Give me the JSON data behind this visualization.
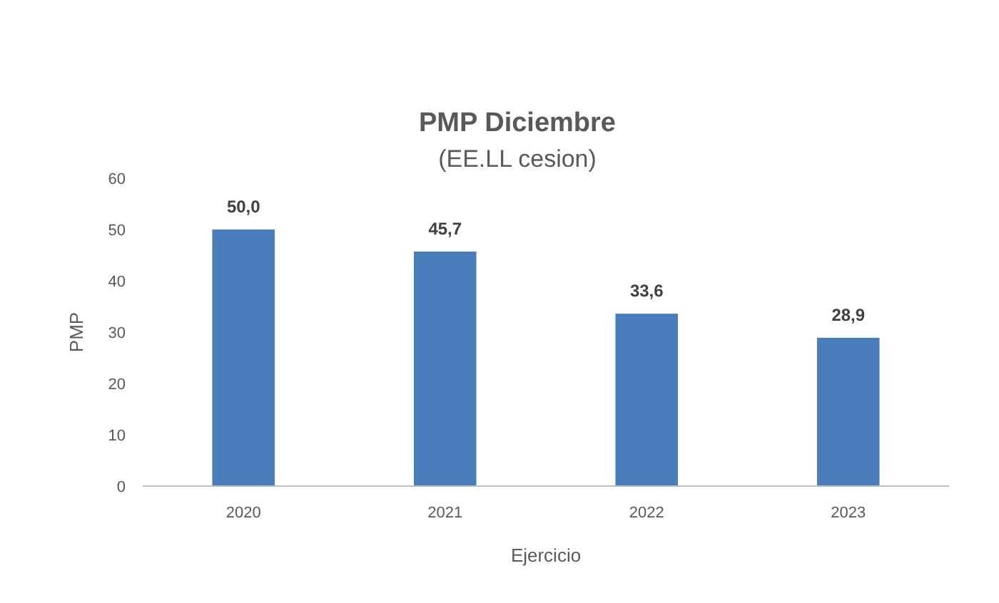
{
  "chart_data": {
    "type": "bar",
    "title": "PMP Diciembre",
    "subtitle": "(EE.LL cesion)",
    "xlabel": "Ejercicio",
    "ylabel": "PMP",
    "categories": [
      "2020",
      "2021",
      "2022",
      "2023"
    ],
    "values": [
      50.0,
      45.7,
      33.6,
      28.9
    ],
    "value_labels": [
      "50,0",
      "45,7",
      "33,6",
      "28,9"
    ],
    "color": "#4a7ebb",
    "ylim": [
      0,
      60
    ],
    "yticks": [
      0,
      10,
      20,
      30,
      40,
      50,
      60
    ]
  }
}
